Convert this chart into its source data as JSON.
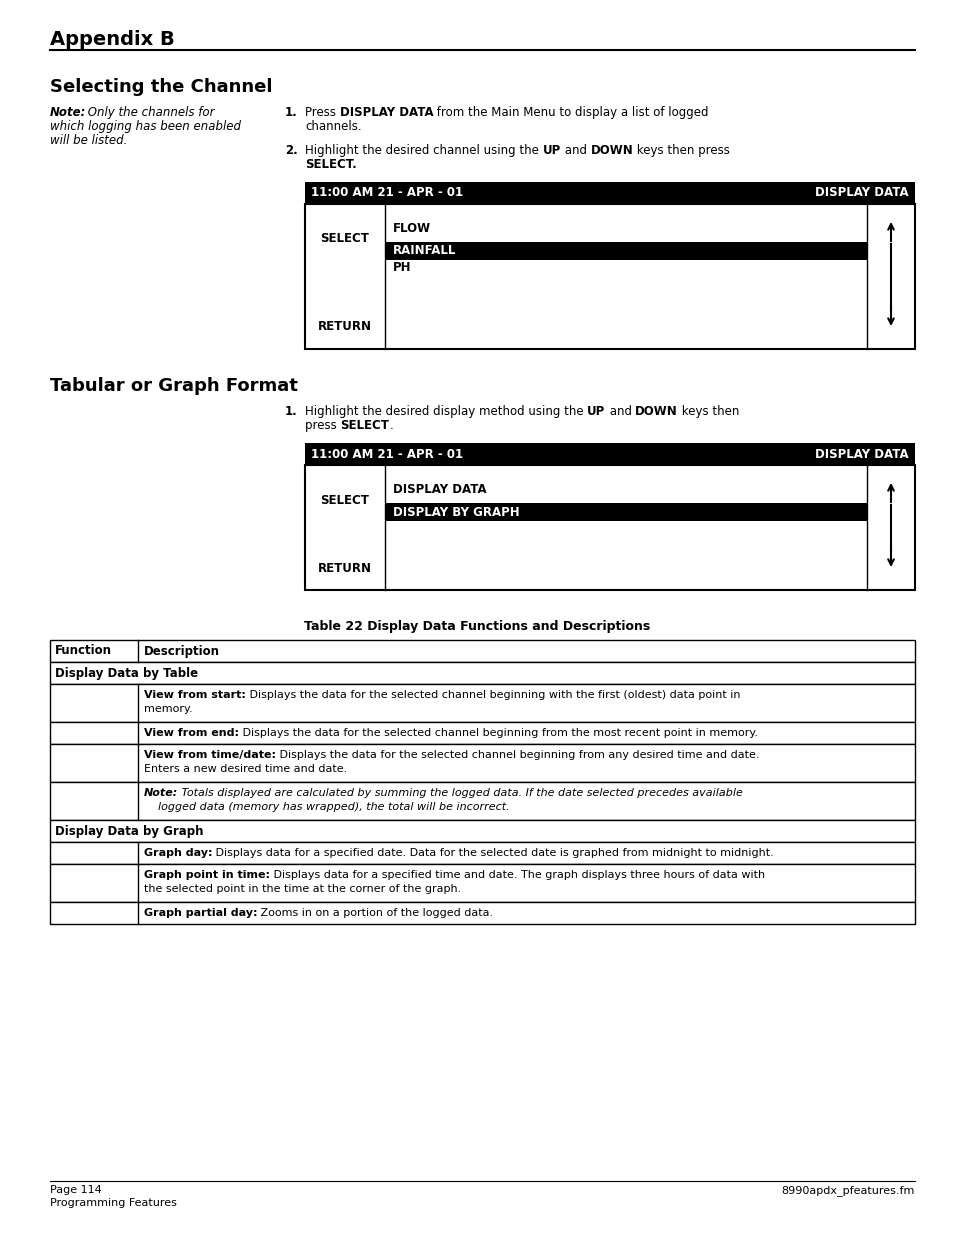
{
  "page_bg": "#ffffff",
  "appendix_title": "Appendix B",
  "section1_title": "Selecting the Channel",
  "section2_title": "Tabular or Graph Format",
  "display1_header_left": "11:00 AM 21 - APR - 01",
  "display1_header_right": "DISPLAY DATA",
  "display2_header_left": "11:00 AM 21 - APR - 01",
  "display2_header_right": "DISPLAY DATA",
  "table_title": "Table 22 Display Data Functions and Descriptions",
  "table_col1_header": "Function",
  "table_col2_header": "Description",
  "footer_left1": "Page 114",
  "footer_left2": "Programming Features",
  "footer_right": "8990apdx_pfeatures.fm"
}
